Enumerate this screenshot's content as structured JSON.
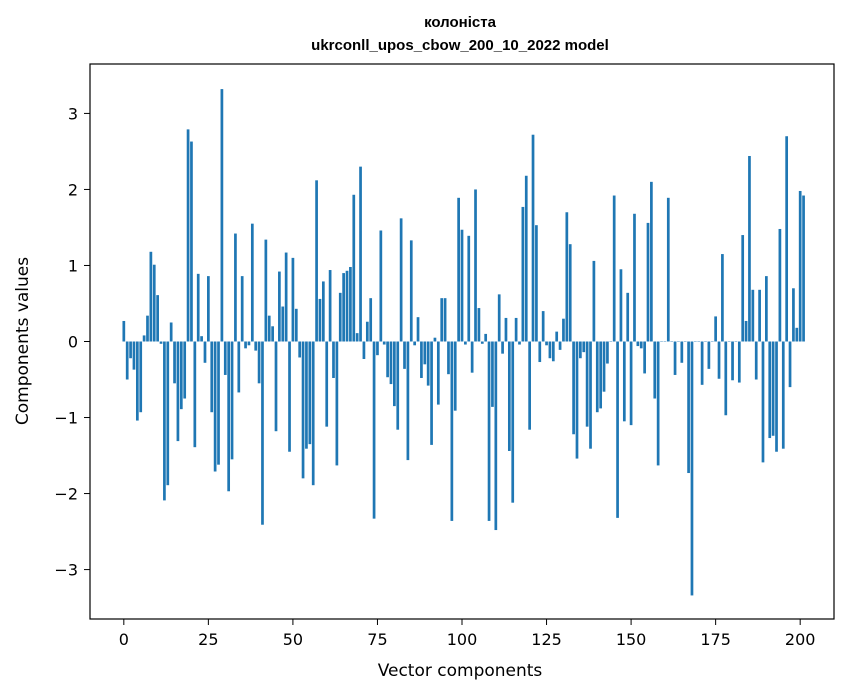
{
  "chart_data": {
    "type": "bar",
    "title_line1": "колоніста",
    "title_line2": "ukrconll_upos_cbow_200_10_2022 model",
    "xlabel": "Vector components",
    "ylabel": "Components values",
    "xlim": [
      -10,
      210
    ],
    "ylim": [
      -3.65,
      3.65
    ],
    "xticks": [
      0,
      25,
      50,
      75,
      100,
      125,
      150,
      175,
      200
    ],
    "yticks": [
      -3,
      -2,
      -1,
      0,
      1,
      2,
      3
    ],
    "ytick_labels": [
      "−3",
      "−2",
      "−1",
      "0",
      "1",
      "2",
      "3"
    ],
    "xtick_labels": [
      "0",
      "25",
      "50",
      "75",
      "100",
      "125",
      "150",
      "175",
      "200"
    ],
    "bar_color": "#1f77b4",
    "grid": false,
    "values": [
      0.27,
      -0.5,
      -0.22,
      -0.37,
      -1.04,
      -0.93,
      0.08,
      0.34,
      1.18,
      1.01,
      0.61,
      -0.03,
      -2.09,
      -1.89,
      0.25,
      -0.55,
      -1.31,
      -0.89,
      -0.75,
      2.79,
      2.63,
      -1.39,
      0.89,
      0.07,
      -0.28,
      0.86,
      -0.93,
      -1.71,
      -1.62,
      3.32,
      -0.44,
      -1.97,
      -1.55,
      1.42,
      -0.67,
      0.86,
      -0.09,
      -0.05,
      1.55,
      -0.12,
      -0.55,
      -2.41,
      1.34,
      0.34,
      0.2,
      -1.18,
      0.92,
      0.46,
      1.17,
      -1.45,
      1.1,
      0.43,
      -0.21,
      -1.8,
      -1.41,
      -1.35,
      -1.89,
      2.12,
      0.56,
      0.79,
      -1.12,
      0.94,
      -0.48,
      -1.63,
      0.64,
      0.9,
      0.93,
      0.98,
      1.93,
      0.11,
      2.3,
      -0.23,
      0.26,
      0.57,
      -2.33,
      -0.18,
      1.46,
      -0.04,
      -0.47,
      -0.56,
      -0.85,
      -1.16,
      1.62,
      -0.36,
      -1.56,
      1.33,
      -0.05,
      0.32,
      -0.48,
      -0.3,
      -0.58,
      -1.36,
      0.05,
      -0.83,
      0.57,
      0.57,
      -0.43,
      -2.36,
      -0.91,
      1.89,
      1.47,
      -0.04,
      1.39,
      -0.41,
      2.0,
      0.44,
      -0.03,
      0.1,
      -2.36,
      -0.86,
      -2.48,
      0.62,
      -0.16,
      0.31,
      -1.44,
      -2.12,
      0.31,
      -0.04,
      1.77,
      2.18,
      -1.16,
      2.72,
      1.53,
      -0.27,
      0.4,
      -0.05,
      -0.22,
      -0.26,
      0.13,
      -0.11,
      0.3,
      1.7,
      1.28,
      -1.22,
      -1.54,
      -0.22,
      -0.14,
      -1.12,
      -1.41,
      1.06,
      -0.93,
      -0.88,
      -0.66,
      -0.29,
      0.0,
      1.92,
      -2.32,
      0.95,
      -1.05,
      0.64,
      -1.1,
      1.68,
      -0.06,
      -0.09,
      -0.42,
      1.56,
      2.1,
      -0.75,
      -1.63,
      0.0,
      0.0,
      1.89,
      0.0,
      -0.44,
      0.0,
      -0.28,
      0.0,
      -1.73,
      -3.34,
      0.0,
      0.0,
      -0.57,
      0.0,
      -0.36,
      0.0,
      0.33,
      -0.49,
      1.15,
      -0.97,
      0.0,
      -0.51,
      0.0,
      -0.54,
      1.4,
      0.27,
      2.44,
      0.68,
      -0.5,
      0.68,
      -1.59,
      0.86,
      -1.27,
      -1.24,
      -1.45,
      1.48,
      -1.41,
      2.7,
      -0.6,
      0.7,
      0.18,
      1.98,
      1.92
    ]
  }
}
